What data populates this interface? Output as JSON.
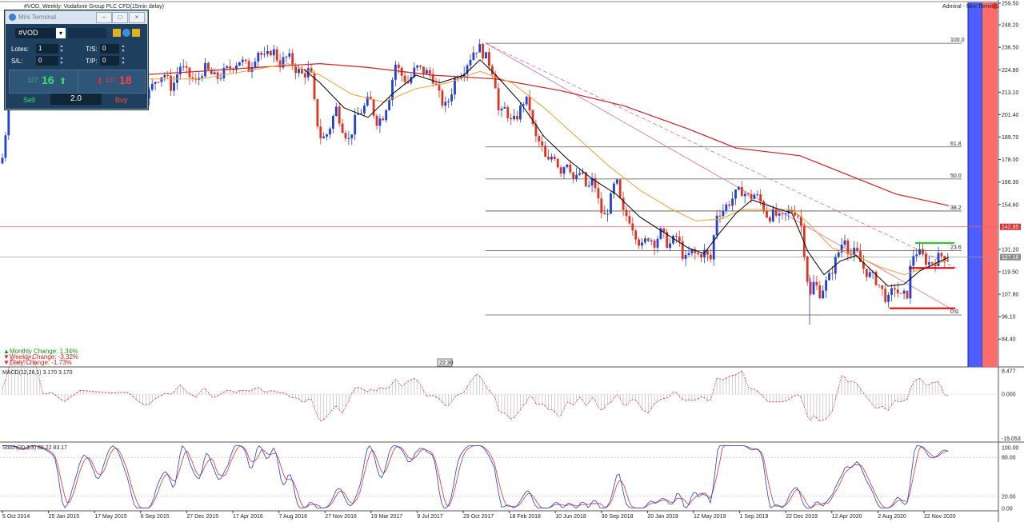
{
  "header": {
    "symbol_title": "#VOD, Weekly:  Vodafone Group PLC CFD(15min delay)",
    "top_right_label": "Admiral - Mini Terminal"
  },
  "mini_terminal": {
    "title": "Mini Terminal",
    "symbol": "#VOD",
    "lots_label": "Lotes:",
    "lots_value": "1",
    "ts_label": "T/S:",
    "ts_value": "0",
    "sl_label": "S/L:",
    "sl_value": "0",
    "tp_label": "T/P:",
    "tp_value": "0",
    "sell_price_small": "127.",
    "sell_price_big": "16",
    "buy_price_small": "127.",
    "buy_price_big": "18",
    "sell_label": "Sell",
    "buy_label": "Buy",
    "lot_size": "2.0"
  },
  "changes": {
    "monthly": "Monthly Change: 1.34%",
    "weekly": "Weekly Change: -3.32%",
    "daily": "Daily Change: -1.73%"
  },
  "time_marker": "22:30",
  "colors": {
    "bull": "#1f3fd8",
    "bear": "#e0301e",
    "sma_short": "#000000",
    "sma_mid": "#f0a030",
    "sma_long": "#d02020",
    "fib": "#555555",
    "price_line": "#e06060",
    "resistance": "#20d020",
    "support": "#d00000",
    "stoch_main": "#2040e0",
    "stoch_signal": "#e03030"
  },
  "chart_data": [
    {
      "type": "candlestick",
      "title": "#VOD, Weekly:  Vodafone Group PLC CFD(15min delay)",
      "y_ticks": [
        "259.50",
        "248.20",
        "236.50",
        "224.80",
        "213.10",
        "201.40",
        "189.70",
        "178.00",
        "166.30",
        "154.60",
        "142.95",
        "131.20",
        "127.16",
        "119.50",
        "107.80",
        "96.10",
        "84.40"
      ],
      "ylim": [
        76,
        260
      ],
      "x_ticks": [
        "5 Oct 2014",
        "25 Jan 2015",
        "17 May 2015",
        "6 Sep 2015",
        "27 Dec 2015",
        "17 Apr 2016",
        "7 Aug 2016",
        "27 Nov 2016",
        "19 Mar 2017",
        "9 Jul 2017",
        "29 Oct 2017",
        "18 Feb 2018",
        "10 Jun 2018",
        "30 Sep 2018",
        "20 Jan 2019",
        "12 May 2019",
        "1 Sep 2019",
        "22 Dec 2019",
        "12 Apr 2020",
        "2 Aug 2020",
        "22 Nov 2020"
      ],
      "current_price": 142.95,
      "bid_price": 127.16,
      "close_path": [
        [
          0,
          170
        ],
        [
          6,
          188
        ],
        [
          14,
          225
        ],
        [
          24,
          218
        ],
        [
          40,
          230
        ],
        [
          60,
          222
        ],
        [
          80,
          218
        ],
        [
          100,
          228
        ],
        [
          120,
          222
        ],
        [
          140,
          230
        ],
        [
          160,
          225
        ],
        [
          175,
          215
        ],
        [
          185,
          212
        ],
        [
          195,
          220
        ],
        [
          205,
          223
        ],
        [
          215,
          215
        ],
        [
          225,
          227
        ],
        [
          235,
          222
        ],
        [
          245,
          218
        ],
        [
          255,
          226
        ],
        [
          270,
          220
        ],
        [
          285,
          225
        ],
        [
          300,
          230
        ],
        [
          312,
          225
        ],
        [
          322,
          235
        ],
        [
          332,
          230
        ],
        [
          340,
          236
        ],
        [
          350,
          228
        ],
        [
          360,
          232
        ],
        [
          368,
          226
        ],
        [
          378,
          222
        ],
        [
          388,
          225
        ],
        [
          395,
          200
        ],
        [
          402,
          188
        ],
        [
          410,
          192
        ],
        [
          420,
          205
        ],
        [
          428,
          195
        ],
        [
          436,
          188
        ],
        [
          445,
          200
        ],
        [
          455,
          205
        ],
        [
          462,
          210
        ],
        [
          470,
          198
        ],
        [
          478,
          200
        ],
        [
          486,
          210
        ],
        [
          494,
          228
        ],
        [
          502,
          222
        ],
        [
          510,
          218
        ],
        [
          520,
          226
        ],
        [
          530,
          224
        ],
        [
          540,
          222
        ],
        [
          548,
          212
        ],
        [
          556,
          205
        ],
        [
          562,
          210
        ],
        [
          570,
          222
        ],
        [
          578,
          224
        ],
        [
          586,
          230
        ],
        [
          594,
          236
        ],
        [
          600,
          236
        ],
        [
          606,
          232
        ],
        [
          612,
          228
        ],
        [
          618,
          222
        ],
        [
          624,
          200
        ],
        [
          632,
          205
        ],
        [
          640,
          196
        ],
        [
          648,
          202
        ],
        [
          656,
          210
        ],
        [
          662,
          205
        ],
        [
          668,
          190
        ],
        [
          676,
          186
        ],
        [
          684,
          175
        ],
        [
          692,
          182
        ],
        [
          700,
          172
        ],
        [
          710,
          178
        ],
        [
          718,
          166
        ],
        [
          726,
          172
        ],
        [
          734,
          162
        ],
        [
          742,
          168
        ],
        [
          750,
          152
        ],
        [
          756,
          148
        ],
        [
          762,
          155
        ],
        [
          770,
          168
        ],
        [
          778,
          150
        ],
        [
          786,
          148
        ],
        [
          794,
          140
        ],
        [
          802,
          132
        ],
        [
          810,
          138
        ],
        [
          818,
          135
        ],
        [
          826,
          140
        ],
        [
          836,
          133
        ],
        [
          846,
          138
        ],
        [
          856,
          125
        ],
        [
          864,
          130
        ],
        [
          872,
          128
        ],
        [
          880,
          130
        ],
        [
          888,
          125
        ],
        [
          896,
          150
        ],
        [
          904,
          152
        ],
        [
          912,
          156
        ],
        [
          920,
          160
        ],
        [
          928,
          162
        ],
        [
          936,
          158
        ],
        [
          944,
          160
        ],
        [
          952,
          155
        ],
        [
          960,
          148
        ],
        [
          968,
          150
        ],
        [
          976,
          146
        ],
        [
          984,
          150
        ],
        [
          992,
          152
        ],
        [
          1000,
          148
        ],
        [
          1006,
          128
        ],
        [
          1012,
          105
        ],
        [
          1018,
          115
        ],
        [
          1024,
          108
        ],
        [
          1030,
          112
        ],
        [
          1036,
          116
        ],
        [
          1044,
          125
        ],
        [
          1050,
          132
        ],
        [
          1056,
          138
        ],
        [
          1062,
          128
        ],
        [
          1070,
          130
        ],
        [
          1078,
          122
        ],
        [
          1086,
          118
        ],
        [
          1094,
          116
        ],
        [
          1102,
          110
        ],
        [
          1110,
          104
        ],
        [
          1118,
          112
        ],
        [
          1126,
          106
        ],
        [
          1134,
          108
        ],
        [
          1140,
          128
        ],
        [
          1146,
          130
        ],
        [
          1152,
          128
        ],
        [
          1160,
          124
        ],
        [
          1168,
          125
        ],
        [
          1176,
          128
        ],
        [
          1184,
          127
        ]
      ],
      "sma_short_path": [
        [
          380,
          225
        ],
        [
          400,
          218
        ],
        [
          430,
          205
        ],
        [
          460,
          200
        ],
        [
          490,
          212
        ],
        [
          520,
          222
        ],
        [
          550,
          218
        ],
        [
          580,
          222
        ],
        [
          600,
          230
        ],
        [
          620,
          222
        ],
        [
          650,
          208
        ],
        [
          680,
          190
        ],
        [
          710,
          178
        ],
        [
          740,
          168
        ],
        [
          770,
          160
        ],
        [
          800,
          148
        ],
        [
          830,
          140
        ],
        [
          860,
          132
        ],
        [
          880,
          129
        ],
        [
          900,
          140
        ],
        [
          920,
          150
        ],
        [
          940,
          157
        ],
        [
          960,
          154
        ],
        [
          990,
          150
        ],
        [
          1010,
          130
        ],
        [
          1030,
          118
        ],
        [
          1050,
          125
        ],
        [
          1070,
          128
        ],
        [
          1090,
          120
        ],
        [
          1110,
          112
        ],
        [
          1130,
          113
        ],
        [
          1150,
          120
        ],
        [
          1170,
          124
        ],
        [
          1186,
          127
        ]
      ],
      "sma_mid_path": [
        [
          180,
          220
        ],
        [
          250,
          220
        ],
        [
          320,
          225
        ],
        [
          360,
          228
        ],
        [
          400,
          222
        ],
        [
          440,
          212
        ],
        [
          480,
          208
        ],
        [
          520,
          215
        ],
        [
          560,
          218
        ],
        [
          600,
          224
        ],
        [
          640,
          218
        ],
        [
          680,
          205
        ],
        [
          720,
          190
        ],
        [
          760,
          175
        ],
        [
          800,
          162
        ],
        [
          840,
          152
        ],
        [
          870,
          146
        ],
        [
          900,
          147
        ],
        [
          930,
          152
        ],
        [
          960,
          152
        ],
        [
          990,
          152
        ],
        [
          1010,
          145
        ],
        [
          1040,
          132
        ],
        [
          1070,
          128
        ],
        [
          1100,
          122
        ],
        [
          1130,
          118
        ],
        [
          1160,
          122
        ],
        [
          1186,
          126
        ]
      ],
      "sma_long_path": [
        [
          170,
          222
        ],
        [
          250,
          224
        ],
        [
          320,
          226
        ],
        [
          400,
          228
        ],
        [
          460,
          226
        ],
        [
          540,
          222
        ],
        [
          620,
          220
        ],
        [
          700,
          214
        ],
        [
          780,
          206
        ],
        [
          860,
          194
        ],
        [
          920,
          184
        ],
        [
          1000,
          180
        ],
        [
          1060,
          170
        ],
        [
          1120,
          160
        ],
        [
          1186,
          154
        ]
      ],
      "fib_levels": [
        {
          "label": "100.0",
          "value": 238.6
        },
        {
          "label": "61.8",
          "value": 184.6
        },
        {
          "label": "50.0",
          "value": 167.9
        },
        {
          "label": "38.2",
          "value": 151.2
        },
        {
          "label": "23.6",
          "value": 130.5
        },
        {
          "label": "0.0",
          "value": 97.0
        }
      ],
      "resistance_level": 134.5,
      "support_levels": [
        121.5,
        100.5
      ]
    },
    {
      "type": "line",
      "title": "MACD(12,26,1) 3.170 3.170",
      "y_ticks": [
        "8.477",
        "0.000",
        "-15.053"
      ],
      "ylim": [
        -16,
        9
      ]
    },
    {
      "type": "line",
      "title": "Stoch(20,3,3) 82.22 83.17",
      "y_ticks": [
        "100.00",
        "80.00",
        "20.00",
        "0.00"
      ],
      "ylim": [
        0,
        100
      ]
    }
  ]
}
